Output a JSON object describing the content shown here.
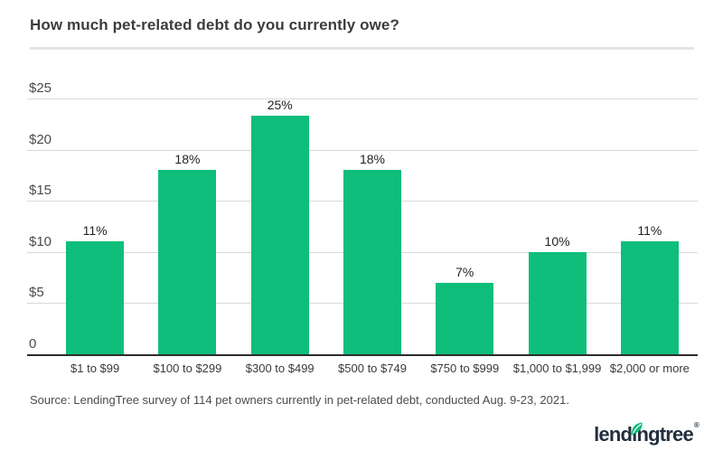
{
  "header": {
    "title": "How much pet-related debt do you currently owe?"
  },
  "chart_data": {
    "type": "bar",
    "title": "How much pet-related debt do you currently owe?",
    "categories": [
      "$1 to $99",
      "$100 to $299",
      "$300 to $499",
      "$500 to $749",
      "$750 to $999",
      "$1,000 to $1,999",
      "$2,000 or more"
    ],
    "values": [
      11,
      18,
      25,
      18,
      7,
      10,
      11
    ],
    "value_labels": [
      "11%",
      "18%",
      "25%",
      "18%",
      "7%",
      "10%",
      "11%"
    ],
    "xlabel": "",
    "ylabel": "",
    "ylim": [
      0,
      25
    ],
    "yticks": [
      {
        "value": 0,
        "label": "0"
      },
      {
        "value": 5,
        "label": "$5"
      },
      {
        "value": 10,
        "label": "$10"
      },
      {
        "value": 15,
        "label": "$15"
      },
      {
        "value": 20,
        "label": "$20"
      },
      {
        "value": 25,
        "label": "$25"
      }
    ],
    "grid": true,
    "legend": "none",
    "bar_color": "#0ebe7a"
  },
  "footer": {
    "source": "Source: LendingTree survey of 114 pet owners currently in pet-related debt, conducted Aug. 9-23, 2021.",
    "logo_text": "lendingtree",
    "logo_reg_mark": "®"
  },
  "colors": {
    "bar_green": "#0ebe7a",
    "gridline": "#d9d9d9",
    "axis_line": "#2d2d2d",
    "title_text": "#3c3c3c",
    "divider": "#e4e4e4",
    "logo_navy": "#222f3e"
  }
}
